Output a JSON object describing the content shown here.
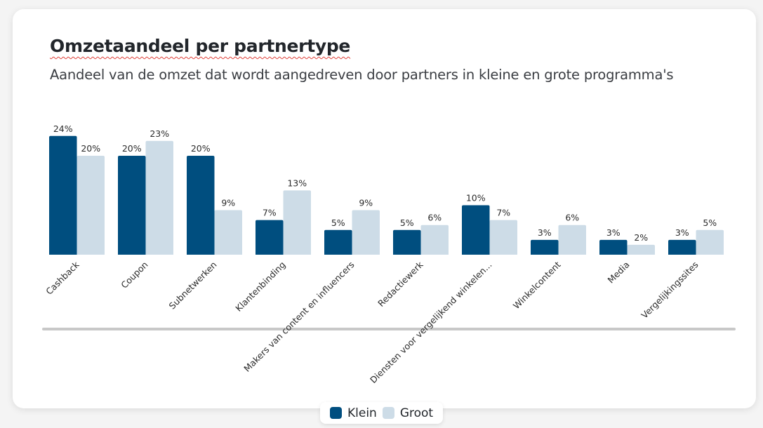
{
  "chart_data": {
    "type": "bar",
    "title": "Omzetaandeel per partnertype",
    "subtitle": "Aandeel van de omzet dat wordt aangedreven door partners in kleine en grote programma's",
    "xlabel": "",
    "ylabel": "",
    "ylim": [
      0,
      24
    ],
    "grid": false,
    "legend_position": "bottom-center",
    "value_suffix": "%",
    "categories": [
      "Cashback",
      "Coupon",
      "Subnetwerken",
      "Klantenbinding",
      "Makers van content en influencers",
      "Redactiewerk",
      "Diensten voor vergelijkend winkelen...",
      "Winkelcontent",
      "Media",
      "Vergelijkingssites"
    ],
    "series": [
      {
        "name": "Klein",
        "color": "#004e7f",
        "values": [
          24,
          20,
          20,
          7,
          5,
          5,
          10,
          3,
          3,
          3
        ]
      },
      {
        "name": "Groot",
        "color": "#cddce7",
        "values": [
          20,
          23,
          9,
          13,
          9,
          6,
          7,
          6,
          2,
          5
        ]
      }
    ]
  },
  "legend": {
    "items": [
      {
        "label": "Klein",
        "color": "#004e7f"
      },
      {
        "label": "Groot",
        "color": "#cddce7"
      }
    ]
  },
  "colors": {
    "axis_line": "#c8c8c8",
    "label_text": "#2b2b2b",
    "title_text": "#22262b"
  }
}
